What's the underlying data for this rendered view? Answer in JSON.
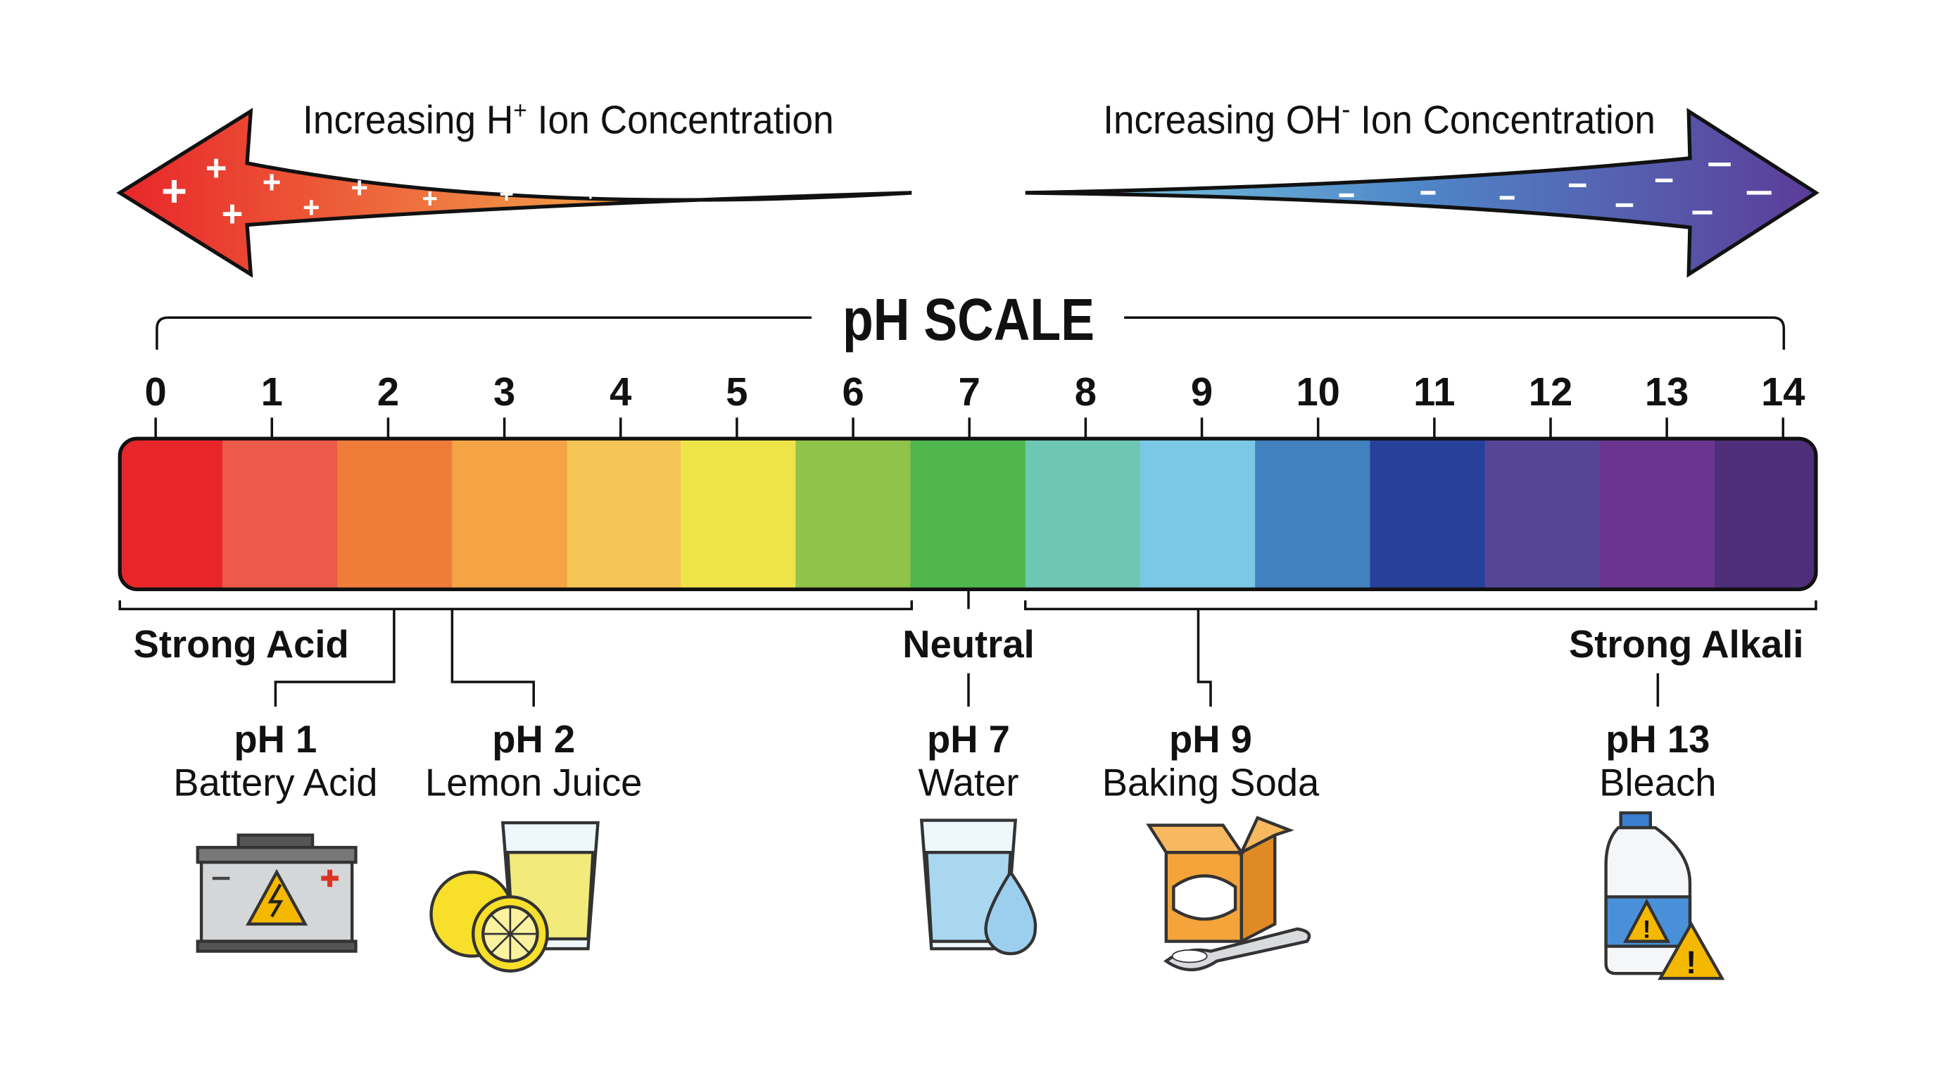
{
  "arrows": {
    "acid_label": "Increasing H",
    "acid_sup": "+",
    "acid_rest": " Ion Concentration",
    "base_label": "Increasing OH",
    "base_sup": "-",
    "base_rest": " Ion Concentration"
  },
  "title": "pH SCALE",
  "scale": {
    "numbers": [
      "0",
      "1",
      "2",
      "3",
      "4",
      "5",
      "6",
      "7",
      "8",
      "9",
      "10",
      "11",
      "12",
      "13",
      "14"
    ],
    "colors": [
      "#e8262a",
      "#ec5a4a",
      "#f07c3a",
      "#f5a445",
      "#f4c555",
      "#efe34a",
      "#8fc34a",
      "#4fb74e",
      "#6ec7b3",
      "#7ac8e6",
      "#4281c0",
      "#27419a",
      "#544597",
      "#6a3590",
      "#4e2e78"
    ]
  },
  "regions": {
    "acid": "Strong Acid",
    "neutral": "Neutral",
    "alkali": "Strong Alkali"
  },
  "examples": [
    {
      "ph": "pH 1",
      "name": "Battery Acid",
      "icon": "battery-icon"
    },
    {
      "ph": "pH 2",
      "name": "Lemon Juice",
      "icon": "lemon-juice-icon"
    },
    {
      "ph": "pH 7",
      "name": "Water",
      "icon": "water-glass-icon"
    },
    {
      "ph": "pH 9",
      "name": "Baking Soda",
      "icon": "baking-soda-icon"
    },
    {
      "ph": "pH 13",
      "name": "Bleach",
      "icon": "bleach-icon"
    }
  ]
}
